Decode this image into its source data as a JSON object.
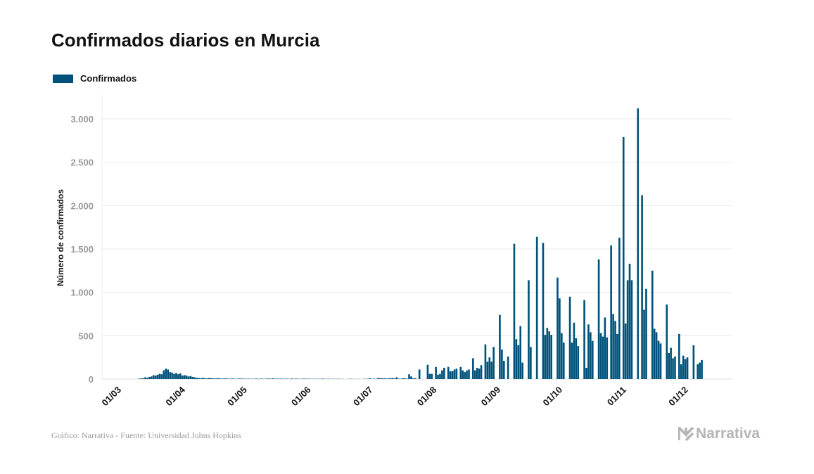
{
  "colors": {
    "bar": "#00527a",
    "grid": "#e8e8e8",
    "axis_text": "#9a9a9a"
  },
  "chart_data": {
    "type": "bar",
    "title": "Confirmados diarios en Murcia",
    "legend": [
      "Confirmados"
    ],
    "legend_position": "top-left",
    "xlabel": "",
    "ylabel": "Número de confirmados",
    "ylim": [
      0,
      3200
    ],
    "yticks": [
      0,
      500,
      1000,
      1500,
      2000,
      2500,
      3000
    ],
    "ytick_labels": [
      "0",
      "500",
      "1.000",
      "1.500",
      "2.000",
      "2.500",
      "3.000"
    ],
    "x_start": "01/03",
    "x_ticks": [
      {
        "label": "01/03",
        "day": 0
      },
      {
        "label": "01/04",
        "day": 31
      },
      {
        "label": "01/05",
        "day": 61
      },
      {
        "label": "01/06",
        "day": 92
      },
      {
        "label": "01/07",
        "day": 122
      },
      {
        "label": "01/08",
        "day": 153
      },
      {
        "label": "01/09",
        "day": 184
      },
      {
        "label": "01/10",
        "day": 214
      },
      {
        "label": "01/11",
        "day": 245
      },
      {
        "label": "01/12",
        "day": 275
      }
    ],
    "grid": true,
    "values": [
      0,
      0,
      0,
      0,
      0,
      0,
      0,
      0,
      0,
      5,
      8,
      10,
      20,
      15,
      25,
      30,
      45,
      40,
      50,
      60,
      55,
      100,
      120,
      110,
      80,
      75,
      60,
      70,
      55,
      65,
      40,
      45,
      40,
      30,
      35,
      25,
      20,
      15,
      12,
      10,
      15,
      10,
      8,
      12,
      10,
      8,
      6,
      10,
      8,
      5,
      6,
      8,
      5,
      4,
      6,
      5,
      3,
      4,
      6,
      5,
      4,
      3,
      5,
      2,
      4,
      3,
      6,
      2,
      5,
      4,
      3,
      5,
      6,
      4,
      8,
      3,
      5,
      4,
      6,
      3,
      5,
      4,
      2,
      6,
      3,
      5,
      4,
      2,
      3,
      5,
      3,
      4,
      3,
      2,
      4,
      1,
      3,
      2,
      5,
      3,
      2,
      4,
      1,
      3,
      2,
      2,
      3,
      1,
      2,
      0,
      1,
      2,
      3,
      1,
      0,
      2,
      1,
      0,
      3,
      2,
      4,
      8,
      2,
      4,
      3,
      12,
      10,
      8,
      9,
      6,
      8,
      10,
      12,
      8,
      20,
      5,
      4,
      10,
      8,
      5,
      55,
      30,
      8,
      10,
      0,
      110,
      0,
      0,
      0,
      165,
      60,
      60,
      0,
      140,
      50,
      60,
      100,
      130,
      0,
      140,
      90,
      90,
      110,
      120,
      0,
      140,
      100,
      80,
      100,
      110,
      0,
      240,
      100,
      130,
      120,
      160,
      0,
      400,
      200,
      250,
      200,
      370,
      0,
      0,
      740,
      340,
      210,
      0,
      260,
      0,
      0,
      1560,
      460,
      390,
      610,
      190,
      0,
      0,
      1140,
      370,
      0,
      0,
      1640,
      0,
      0,
      1570,
      510,
      590,
      550,
      510,
      0,
      0,
      1170,
      930,
      530,
      420,
      0,
      0,
      950,
      420,
      650,
      470,
      380,
      0,
      0,
      910,
      130,
      630,
      540,
      440,
      0,
      0,
      1380,
      530,
      490,
      710,
      480,
      0,
      1540,
      750,
      670,
      520,
      1630,
      0,
      2790,
      640,
      1140,
      1330,
      1140,
      0,
      0,
      3120,
      0,
      2120,
      800,
      1040,
      0,
      0,
      1250,
      580,
      540,
      440,
      410,
      0,
      0,
      860,
      300,
      360,
      240,
      260,
      0,
      520,
      170,
      270,
      230,
      250,
      0,
      0,
      390,
      0,
      170,
      190,
      220
    ]
  },
  "footer": {
    "source": "Gráfico: Narrativa - Fuente: Universidad Johns Hopkins",
    "logo": "Narrativa"
  }
}
